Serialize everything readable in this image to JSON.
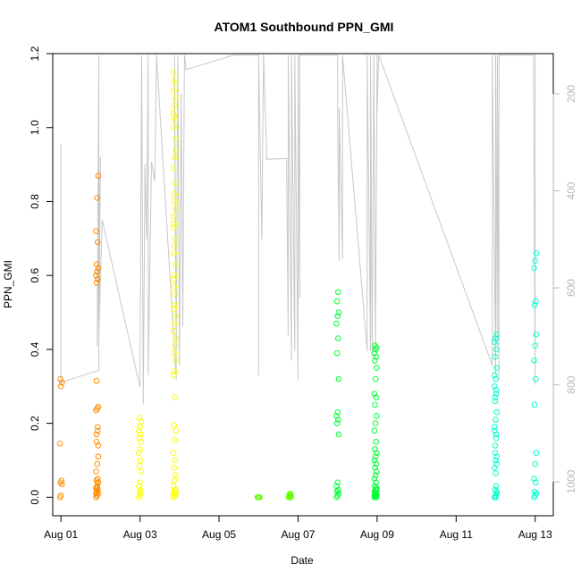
{
  "chart_data": {
    "type": "scatter",
    "title": "ATOM1 Southbound PPN_GMI",
    "xlabel": "Date",
    "ylabel": "PPN_GMI",
    "x_is_date": true,
    "xlim": [
      "2016-07-31T19:00",
      "2016-08-13T11:00"
    ],
    "ylim": [
      -0.05,
      1.2
    ],
    "x_ticks": [
      {
        "date": "2016-08-01",
        "label": "Aug 01"
      },
      {
        "date": "2016-08-03",
        "label": "Aug 03"
      },
      {
        "date": "2016-08-05",
        "label": "Aug 05"
      },
      {
        "date": "2016-08-07",
        "label": "Aug 07"
      },
      {
        "date": "2016-08-09",
        "label": "Aug 09"
      },
      {
        "date": "2016-08-11",
        "label": "Aug 11"
      },
      {
        "date": "2016-08-13",
        "label": "Aug 13"
      }
    ],
    "y_ticks": [
      0.0,
      0.2,
      0.4,
      0.6,
      0.8,
      1.0,
      1.2
    ],
    "y_tick_labels": [
      "0.0",
      "0.2",
      "0.4",
      "0.6",
      "0.8",
      "1.0",
      "1.2"
    ],
    "secondary_y": {
      "ylim": [
        117,
        1070
      ],
      "inverted": true,
      "ticks": [
        200,
        400,
        600,
        800,
        1000
      ],
      "tick_labels": [
        "200",
        "400",
        "600",
        "800",
        "1000"
      ],
      "color": "#b8b8b8"
    },
    "grid": false,
    "legend": "none",
    "marker": "open-circle",
    "depth_line": {
      "color": "#c8c8c8",
      "points": [
        [
          "2016-08-01T00:00",
          590
        ],
        [
          "2016-08-01T00:00",
          303
        ],
        [
          "2016-08-01T00:00",
          795
        ],
        [
          "2016-08-01T23:00",
          770
        ],
        [
          "2016-08-01T23:00",
          120
        ],
        [
          "2016-08-01T22:00",
          720
        ],
        [
          "2016-08-02T00:00",
          330
        ],
        [
          "2016-08-01T23:00",
          700
        ],
        [
          "2016-08-02T01:00",
          460
        ],
        [
          "2016-08-03T00:00",
          805
        ],
        [
          "2016-08-03T01:00",
          120
        ],
        [
          "2016-08-03T02:00",
          840
        ],
        [
          "2016-08-03T03:00",
          345
        ],
        [
          "2016-08-03T04:00",
          500
        ],
        [
          "2016-08-03T05:00",
          120
        ],
        [
          "2016-08-03T05:00",
          780
        ],
        [
          "2016-08-03T07:00",
          340
        ],
        [
          "2016-08-03T09:00",
          380
        ],
        [
          "2016-08-03T10:00",
          120
        ],
        [
          "2016-08-03T22:00",
          790
        ],
        [
          "2016-08-03T21:00",
          120
        ],
        [
          "2016-08-03T21:00",
          250
        ],
        [
          "2016-08-03T22:00",
          730
        ],
        [
          "2016-08-03T23:00",
          120
        ],
        [
          "2016-08-04T00:00",
          760
        ],
        [
          "2016-08-04T01:00",
          200
        ],
        [
          "2016-08-04T02:00",
          680
        ],
        [
          "2016-08-04T03:00",
          120
        ],
        [
          "2016-08-04T04:00",
          150
        ],
        [
          "2016-08-05T09:00",
          120
        ],
        [
          "2016-08-06T00:00",
          120
        ],
        [
          "2016-08-06T00:00",
          780
        ],
        [
          "2016-08-06T00:00",
          120
        ],
        [
          "2016-08-06T02:00",
          500
        ],
        [
          "2016-08-06T03:00",
          120
        ],
        [
          "2016-08-06T05:00",
          335
        ],
        [
          "2016-08-06T17:00",
          333
        ],
        [
          "2016-08-06T18:00",
          700
        ],
        [
          "2016-08-06T18:00",
          120
        ],
        [
          "2016-08-06T20:00",
          750
        ],
        [
          "2016-08-06T20:00",
          120
        ],
        [
          "2016-08-06T22:00",
          730
        ],
        [
          "2016-08-06T22:00",
          120
        ],
        [
          "2016-08-07T00:00",
          790
        ],
        [
          "2016-08-07T00:00",
          120
        ],
        [
          "2016-08-07T01:00",
          620
        ],
        [
          "2016-08-07T01:00",
          120
        ],
        [
          "2016-08-08T00:00",
          120
        ],
        [
          "2016-08-08T00:00",
          255
        ],
        [
          "2016-08-08T01:00",
          545
        ],
        [
          "2016-08-08T01:00",
          230
        ],
        [
          "2016-08-08T03:00",
          540
        ],
        [
          "2016-08-08T03:00",
          120
        ],
        [
          "2016-08-08T18:00",
          730
        ],
        [
          "2016-08-08T18:00",
          120
        ],
        [
          "2016-08-08T20:00",
          730
        ],
        [
          "2016-08-08T20:00",
          120
        ],
        [
          "2016-08-08T21:00",
          740
        ],
        [
          "2016-08-08T22:00",
          120
        ],
        [
          "2016-08-08T23:00",
          725
        ],
        [
          "2016-08-09T00:00",
          120
        ],
        [
          "2016-08-09T00:00",
          180
        ],
        [
          "2016-08-09T00:00",
          240
        ],
        [
          "2016-08-09T01:00",
          120
        ],
        [
          "2016-08-11T22:00",
          760
        ],
        [
          "2016-08-11T22:00",
          120
        ],
        [
          "2016-08-12T00:00",
          780
        ],
        [
          "2016-08-12T00:00",
          120
        ],
        [
          "2016-08-12T01:00",
          720
        ],
        [
          "2016-08-12T01:00",
          120
        ],
        [
          "2016-08-12T02:00",
          790
        ],
        [
          "2016-08-12T02:00",
          120
        ],
        [
          "2016-08-12T23:00",
          120
        ],
        [
          "2016-08-13T00:00",
          800
        ],
        [
          "2016-08-13T00:00",
          120
        ]
      ]
    },
    "series": [
      {
        "color": "#ff8c00",
        "clusters": [
          {
            "x": "2016-08-01T00:00",
            "y": [
              0.0,
              0.005,
              0.035,
              0.04,
              0.045,
              0.145,
              0.3,
              0.31,
              0.32
            ]
          },
          {
            "x": "2016-08-01T22:00",
            "y": [
              0.0,
              0.005,
              0.01,
              0.015,
              0.02,
              0.025,
              0.03,
              0.04,
              0.045,
              0.05,
              0.07,
              0.09,
              0.14,
              0.17,
              0.19,
              0.235,
              0.24,
              0.245,
              0.58,
              0.59,
              0.6,
              0.61,
              0.62,
              0.63,
              0.69,
              0.72,
              0.81,
              0.87,
              0.315,
              0.04,
              0.01,
              0.025,
              0.11,
              0.15,
              0.18
            ]
          }
        ]
      },
      {
        "color": "#ffff00",
        "clusters": [
          {
            "x": "2016-08-03T00:00",
            "y": [
              0.0,
              0.005,
              0.01,
              0.015,
              0.02,
              0.03,
              0.04,
              0.07,
              0.085,
              0.1,
              0.12,
              0.13,
              0.15,
              0.16,
              0.17,
              0.18,
              0.19,
              0.205,
              0.215
            ]
          },
          {
            "x": "2016-08-03T21:00",
            "y": [
              0.0,
              0.005,
              0.01,
              0.015,
              0.02,
              0.03,
              0.045,
              0.06,
              0.08,
              0.1,
              0.12,
              0.155,
              0.18,
              0.195,
              0.27,
              0.33,
              0.34,
              0.37,
              0.39,
              0.41,
              0.45,
              0.47,
              0.49,
              0.51,
              0.55,
              0.59,
              0.6,
              0.63,
              0.66,
              0.7,
              0.73,
              0.74,
              0.78,
              0.82,
              0.85,
              0.89,
              0.92,
              0.97,
              1.0,
              1.02,
              1.04,
              1.06,
              1.08,
              1.1,
              1.13,
              1.15,
              0.52,
              0.43,
              0.57,
              0.68,
              0.76,
              0.8,
              0.94,
              1.03,
              1.12,
              0.005,
              0.01,
              0.02
            ]
          }
        ]
      },
      {
        "color": "#66ff00",
        "clusters": [
          {
            "x": "2016-08-06T00:00",
            "y": [
              0.0,
              0.0,
              0.0,
              0.0,
              0.0
            ]
          },
          {
            "x": "2016-08-06T19:00",
            "y": [
              0.0,
              0.002,
              0.005,
              0.008,
              0.01,
              0.0,
              0.003,
              0.0,
              0.004
            ]
          }
        ]
      },
      {
        "color": "#00ff33",
        "clusters": [
          {
            "x": "2016-08-08T00:00",
            "y": [
              0.0,
              0.005,
              0.01,
              0.015,
              0.02,
              0.03,
              0.04,
              0.17,
              0.2,
              0.21,
              0.22,
              0.23,
              0.32,
              0.39,
              0.43,
              0.47,
              0.49,
              0.5,
              0.53,
              0.555
            ]
          },
          {
            "x": "2016-08-08T23:00",
            "y": [
              0.0,
              0.002,
              0.005,
              0.008,
              0.01,
              0.015,
              0.02,
              0.025,
              0.03,
              0.04,
              0.05,
              0.06,
              0.07,
              0.08,
              0.09,
              0.1,
              0.11,
              0.12,
              0.13,
              0.15,
              0.18,
              0.2,
              0.22,
              0.25,
              0.27,
              0.28,
              0.32,
              0.35,
              0.37,
              0.38,
              0.39,
              0.4,
              0.405,
              0.41,
              0.0,
              0.005,
              0.01,
              0.02,
              0.03
            ]
          }
        ]
      },
      {
        "color": "#00ffcc",
        "clusters": [
          {
            "x": "2016-08-12T00:00",
            "y": [
              0.0,
              0.005,
              0.01,
              0.02,
              0.03,
              0.08,
              0.1,
              0.11,
              0.14,
              0.17,
              0.18,
              0.21,
              0.23,
              0.26,
              0.28,
              0.3,
              0.32,
              0.35,
              0.38,
              0.4,
              0.42,
              0.43,
              0.44,
              0.27,
              0.29,
              0.33,
              0.065,
              0.09,
              0.12,
              0.16,
              0.19,
              0.0,
              0.015
            ]
          },
          {
            "x": "2016-08-13T00:00",
            "y": [
              0.0,
              0.005,
              0.01,
              0.015,
              0.04,
              0.05,
              0.09,
              0.12,
              0.25,
              0.32,
              0.37,
              0.41,
              0.44,
              0.52,
              0.53,
              0.62,
              0.64,
              0.66
            ]
          }
        ]
      }
    ]
  }
}
